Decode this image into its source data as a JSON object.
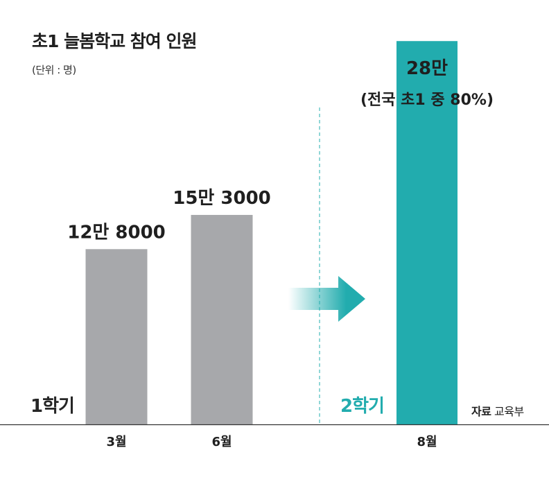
{
  "chart_data": {
    "type": "bar",
    "title": "초1 늘봄학교 참여 인원",
    "unit_note": "(단위 : 명)",
    "categories": [
      "3월",
      "6월",
      "8월"
    ],
    "values": [
      128000,
      153000,
      280000
    ],
    "value_labels": [
      "12만 8000",
      "15만 3000",
      "28만"
    ],
    "highlight_note": "(전국 초1 중 80%)",
    "ylim": [
      0,
      310000
    ],
    "periods": [
      {
        "label": "1학기",
        "categories": [
          "3월",
          "6월"
        ],
        "color": "#262626"
      },
      {
        "label": "2학기",
        "categories": [
          "8월"
        ],
        "color": "#22acae"
      }
    ],
    "xlabel": "",
    "ylabel": "",
    "grid": false,
    "source_key": "자료",
    "source_value": "교육부"
  },
  "colors": {
    "bar_first_semester": "#a7a8ab",
    "bar_second_semester": "#22acae",
    "divider": "#22acae",
    "arrow": "#22acae",
    "baseline": "#333333"
  }
}
